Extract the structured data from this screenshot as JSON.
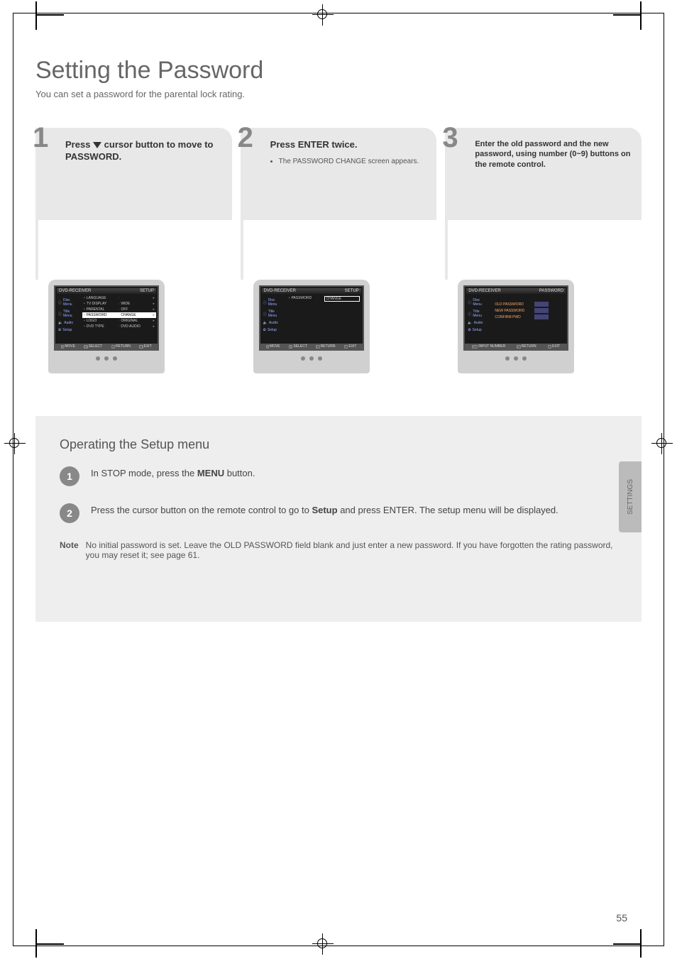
{
  "page": {
    "title": "Setting the Password",
    "subtitle": "You can set a password for the parental lock rating.",
    "number": "55"
  },
  "thumb_label": "SETTINGS",
  "steps": [
    {
      "num": "1",
      "heading_pre": "Press ",
      "heading_btn": "▼",
      "heading_post": " cursor button to move to PASSWORD.",
      "body_items": []
    },
    {
      "num": "2",
      "heading": "Press ENTER twice.",
      "body": "The PASSWORD CHANGE screen appears."
    },
    {
      "num": "3",
      "heading": "Enter the old password and the new password, using number (0~9) buttons on the remote control.",
      "body": ""
    }
  ],
  "tv1": {
    "bar_left": "DVD-RECEIVER",
    "bar_right": "SETUP",
    "side": [
      "Disc Menu",
      "Title Menu",
      "Audio",
      "Setup"
    ],
    "rows": [
      {
        "lbl": "LANGUAGE",
        "val": "",
        "hl": false
      },
      {
        "lbl": "TV DISPLAY",
        "val": "WIDE",
        "hl": false
      },
      {
        "lbl": "PARENTAL",
        "val": "OFF",
        "hl": false
      },
      {
        "lbl": "PASSWORD",
        "val": "CHANGE",
        "hl": true
      },
      {
        "lbl": "LOGO",
        "val": "ORIGINAL",
        "hl": false
      },
      {
        "lbl": "DVD TYPE",
        "val": "DVD AUDIO",
        "hl": false
      }
    ],
    "footer": [
      {
        "k": "↕",
        "t": "MOVE"
      },
      {
        "k": "↵",
        "t": "SELECT"
      },
      {
        "k": "⟲",
        "t": "RETURN"
      },
      {
        "k": "⊘",
        "t": "EXIT"
      }
    ]
  },
  "tv2": {
    "bar_left": "DVD-RECEIVER",
    "bar_right": "SETUP",
    "side": [
      "Disc Menu",
      "Title Menu",
      "Audio",
      "Setup"
    ],
    "rows": [
      {
        "lbl": "PASSWORD",
        "val": "CHANGE",
        "box": true
      }
    ],
    "footer": [
      {
        "k": "↕",
        "t": "MOVE"
      },
      {
        "k": "↵",
        "t": "SELECT"
      },
      {
        "k": "⟲",
        "t": "RETURN"
      },
      {
        "k": "⊘",
        "t": "EXIT"
      }
    ]
  },
  "tv3": {
    "bar_left": "DVD-RECEIVER",
    "bar_right": "PASSWORD",
    "side": [
      "Disc Menu",
      "Title Menu",
      "Audio",
      "Setup"
    ],
    "pw_rows": [
      {
        "l": "OLD PASSWORD"
      },
      {
        "l": "NEW PASSWORD"
      },
      {
        "l": "CONFIRM PWD"
      }
    ],
    "footer": [
      {
        "k": "0-9",
        "t": "INPUT NUMBER"
      },
      {
        "k": "⟲",
        "t": "RETURN"
      },
      {
        "k": "⊘",
        "t": "EXIT"
      }
    ]
  },
  "info": {
    "title": "Operating the Setup menu",
    "rows": [
      {
        "n": "1",
        "pre": "In STOP mode, press the ",
        "bold": "MENU",
        "post": " button."
      },
      {
        "n": "2",
        "pre": "Press the cursor button on the remote control to go to ",
        "bold": "Setup",
        "post": " and press ENTER. The setup menu will be displayed."
      }
    ],
    "note_label": "Note",
    "note_text": "No initial password is set. Leave the OLD PASSWORD field blank and just enter a new password. If you have forgotten the rating password, you may reset it; see page 61."
  },
  "colors": {
    "tab_bg": "#e8e8e8",
    "info_bg": "#eeeeee",
    "thumb_bg": "#bbbbbb",
    "circle": "#888888"
  }
}
